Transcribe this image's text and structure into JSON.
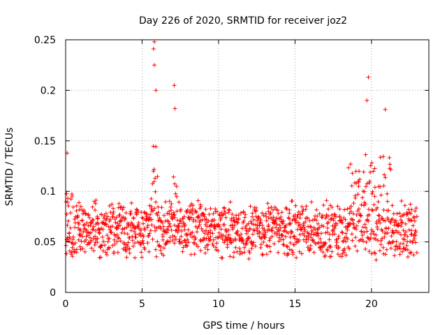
{
  "chart_data": {
    "type": "scatter",
    "title": "Day 226 of 2020, SRMTID for receiver joz2",
    "xlabel": "GPS time / hours",
    "ylabel": "SRMTID / TECUs",
    "xlim": [
      0,
      23.75
    ],
    "ylim": [
      0,
      0.25
    ],
    "x_ticks": [
      0,
      5,
      10,
      15,
      20
    ],
    "y_ticks": [
      0,
      0.05,
      0.1,
      0.15,
      0.2,
      0.25
    ],
    "x_tick_labels": [
      "0",
      "5",
      "10",
      "15",
      "20"
    ],
    "y_tick_labels": [
      "0",
      "0.05",
      "0.1",
      "0.15",
      "0.2",
      "0.25"
    ],
    "grid": true,
    "marker": "+",
    "color": "#ff0000",
    "x_start": 0,
    "x_end": 23,
    "x_step": 0.05,
    "base_level": 0.06,
    "scatter_amplitude": 0.042,
    "floor": 0.015,
    "enhancements": [
      {
        "x": [
          0,
          0.4
        ],
        "extra": 0.04
      },
      {
        "x": [
          5.5,
          6.0
        ],
        "extra": 0.08
      },
      {
        "x": [
          7.0,
          7.4
        ],
        "extra": 0.06
      },
      {
        "x": [
          18.5,
          21.5
        ],
        "extra": 0.06
      }
    ],
    "peaks": [
      {
        "x": 5.8,
        "y": 0.248
      },
      {
        "x": 5.75,
        "y": 0.241
      },
      {
        "x": 5.8,
        "y": 0.225
      },
      {
        "x": 7.1,
        "y": 0.205
      },
      {
        "x": 19.8,
        "y": 0.213
      },
      {
        "x": 19.7,
        "y": 0.19
      },
      {
        "x": 20.9,
        "y": 0.181
      },
      {
        "x": 5.9,
        "y": 0.2
      },
      {
        "x": 7.15,
        "y": 0.182
      },
      {
        "x": 0.1,
        "y": 0.138
      }
    ]
  }
}
